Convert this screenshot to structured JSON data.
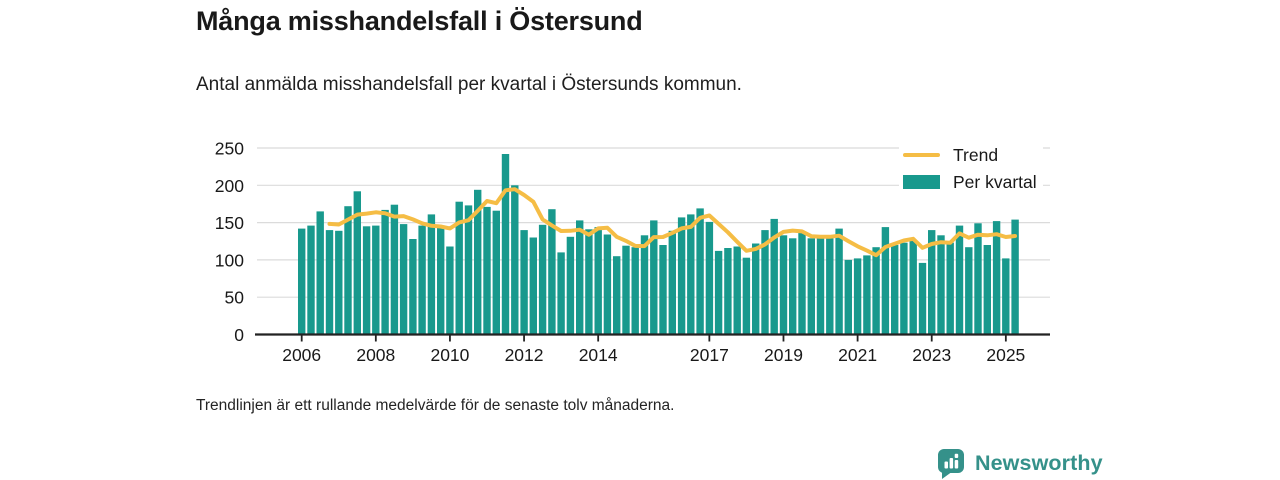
{
  "header": {
    "title": "Många misshandelsfall i Östersund",
    "subtitle": "Antal anmälda misshandelsfall per kvartal i Östersunds kommun."
  },
  "legend": {
    "trend_label": "Trend",
    "bars_label": "Per kvartal"
  },
  "footnote": "Trendlinjen är ett rullande medelvärde för de senaste tolv månaderna.",
  "logo": {
    "name": "Newsworthy"
  },
  "colors": {
    "bar": "#18998D",
    "trend": "#F5BD45",
    "logo": "#35918A",
    "grid": "#DBDBDB",
    "axis": "#222222",
    "text": "#191919"
  },
  "chart_data": {
    "type": "bar",
    "title": "Många misshandelsfall i Östersund",
    "subtitle": "Antal anmälda misshandelsfall per kvartal i Östersunds kommun.",
    "xlabel": "",
    "ylabel": "",
    "ylim": [
      0,
      250
    ],
    "y_ticks": [
      0,
      50,
      100,
      150,
      200,
      250
    ],
    "x_tick_years": [
      2006,
      2008,
      2010,
      2012,
      2014,
      2017,
      2019,
      2021,
      2023,
      2025
    ],
    "grid": true,
    "legend_position": "top-right",
    "x_start": "2006 Q1",
    "x_end": "2025 Q2",
    "categories": [
      "2006 Q1",
      "2006 Q2",
      "2006 Q3",
      "2006 Q4",
      "2007 Q1",
      "2007 Q2",
      "2007 Q3",
      "2007 Q4",
      "2008 Q1",
      "2008 Q2",
      "2008 Q3",
      "2008 Q4",
      "2009 Q1",
      "2009 Q2",
      "2009 Q3",
      "2009 Q4",
      "2010 Q1",
      "2010 Q2",
      "2010 Q3",
      "2010 Q4",
      "2011 Q1",
      "2011 Q2",
      "2011 Q3",
      "2011 Q4",
      "2012 Q1",
      "2012 Q2",
      "2012 Q3",
      "2012 Q4",
      "2013 Q1",
      "2013 Q2",
      "2013 Q3",
      "2013 Q4",
      "2014 Q1",
      "2014 Q2",
      "2014 Q3",
      "2014 Q4",
      "2015 Q1",
      "2015 Q2",
      "2015 Q3",
      "2015 Q4",
      "2016 Q1",
      "2016 Q2",
      "2016 Q3",
      "2016 Q4",
      "2017 Q1",
      "2017 Q2",
      "2017 Q3",
      "2017 Q4",
      "2018 Q1",
      "2018 Q2",
      "2018 Q3",
      "2018 Q4",
      "2019 Q1",
      "2019 Q2",
      "2019 Q3",
      "2019 Q4",
      "2020 Q1",
      "2020 Q2",
      "2020 Q3",
      "2020 Q4",
      "2021 Q1",
      "2021 Q2",
      "2021 Q3",
      "2021 Q4",
      "2022 Q1",
      "2022 Q2",
      "2022 Q3",
      "2022 Q4",
      "2023 Q1",
      "2023 Q2",
      "2023 Q3",
      "2023 Q4",
      "2024 Q1",
      "2024 Q2",
      "2024 Q3",
      "2024 Q4",
      "2025 Q1",
      "2025 Q2"
    ],
    "series": [
      {
        "name": "Per kvartal",
        "type": "bar",
        "values": [
          142,
          146,
          165,
          140,
          139,
          172,
          192,
          145,
          146,
          167,
          174,
          148,
          128,
          146,
          161,
          144,
          118,
          178,
          173,
          194,
          171,
          166,
          242,
          200,
          140,
          130,
          147,
          168,
          110,
          131,
          153,
          141,
          144,
          134,
          105,
          119,
          117,
          133,
          153,
          120,
          139,
          157,
          161,
          169,
          151,
          112,
          116,
          118,
          103,
          122,
          140,
          155,
          133,
          129,
          136,
          129,
          130,
          129,
          142,
          100,
          102,
          106,
          117,
          144,
          120,
          123,
          126,
          96,
          140,
          133,
          123,
          146,
          117,
          149,
          120,
          152,
          102,
          154
        ]
      },
      {
        "name": "Trend",
        "type": "line",
        "values": [
          null,
          null,
          null,
          148.25,
          147.5,
          154,
          160.75,
          162,
          163.75,
          162.5,
          158,
          158.75,
          154.25,
          149,
          145.75,
          144.75,
          142.25,
          150.25,
          153.25,
          165.75,
          179,
          176,
          193.25,
          194.75,
          187,
          178,
          154.25,
          146.25,
          138.75,
          139,
          140.5,
          133.75,
          142.25,
          143,
          131,
          125.5,
          118.75,
          118.5,
          130.5,
          130.75,
          136.25,
          142.25,
          144.25,
          156.5,
          159.5,
          148.25,
          137,
          124.25,
          112.25,
          114.75,
          120.75,
          130,
          137.5,
          139.25,
          138.25,
          131.75,
          131,
          131,
          132.5,
          125.25,
          118.25,
          112.5,
          106.25,
          117.25,
          121.75,
          126,
          128.25,
          116.25,
          121.25,
          123.75,
          123,
          135.5,
          129.75,
          133.75,
          133,
          134.5,
          130.75,
          132
        ]
      }
    ]
  }
}
